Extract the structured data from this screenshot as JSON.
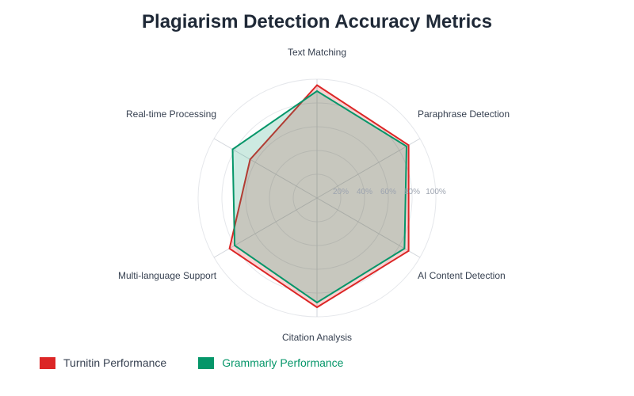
{
  "title": "Plagiarism Detection Accuracy Metrics",
  "chart_data": {
    "type": "radar",
    "title": "Plagiarism Detection Accuracy Metrics",
    "categories": [
      "Text Matching",
      "Paraphrase Detection",
      "AI Content Detection",
      "Citation Analysis",
      "Multi-language Support",
      "Real-time Processing"
    ],
    "ticks": [
      "20%",
      "40%",
      "60%",
      "80%",
      "100%"
    ],
    "range": [
      0,
      100
    ],
    "grid": true,
    "legend_position": "bottom-left",
    "series": [
      {
        "name": "Turnitin Performance",
        "values": [
          95,
          89,
          89,
          92,
          85,
          65
        ],
        "color": "#dc2626"
      },
      {
        "name": "Grammarly Performance",
        "values": [
          90,
          87,
          85,
          88,
          80,
          82
        ],
        "color": "#059669"
      }
    ]
  }
}
